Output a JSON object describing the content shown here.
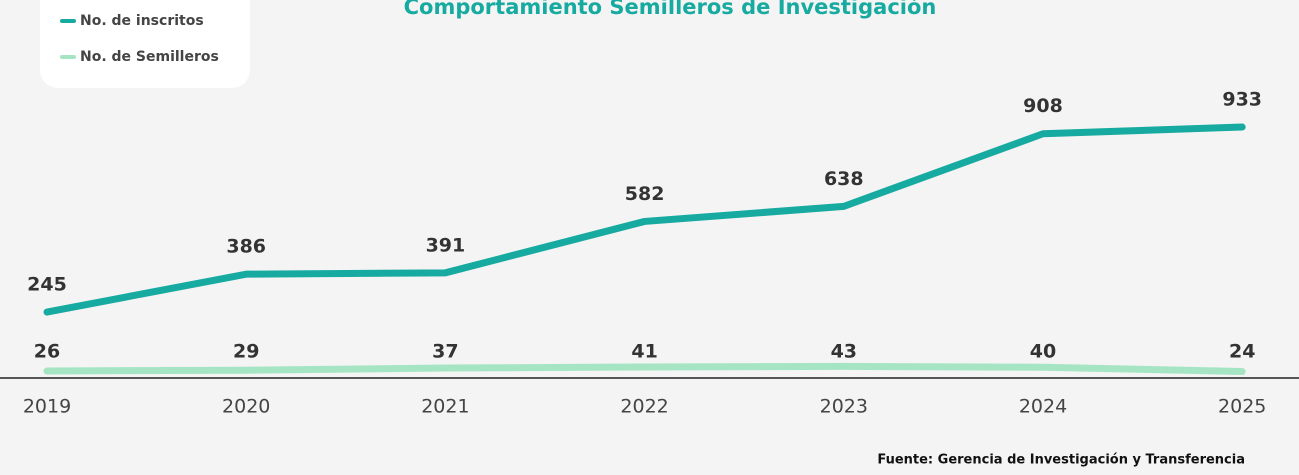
{
  "chart_data": {
    "type": "line",
    "title": "Comportamiento Semilleros de Investigación",
    "categories": [
      "2019",
      "2020",
      "2021",
      "2022",
      "2023",
      "2024",
      "2025"
    ],
    "series": [
      {
        "name": "No. de inscritos",
        "color": "#16aaa0",
        "values": [
          245,
          386,
          391,
          582,
          638,
          908,
          933
        ]
      },
      {
        "name": "No. de Semilleros",
        "color": "#a6e5c3",
        "values": [
          26,
          29,
          37,
          41,
          43,
          40,
          24
        ]
      }
    ],
    "ylim": [
      0,
      1000
    ],
    "source": "Fuente: Gerencia de Investigación y Transferencia"
  }
}
